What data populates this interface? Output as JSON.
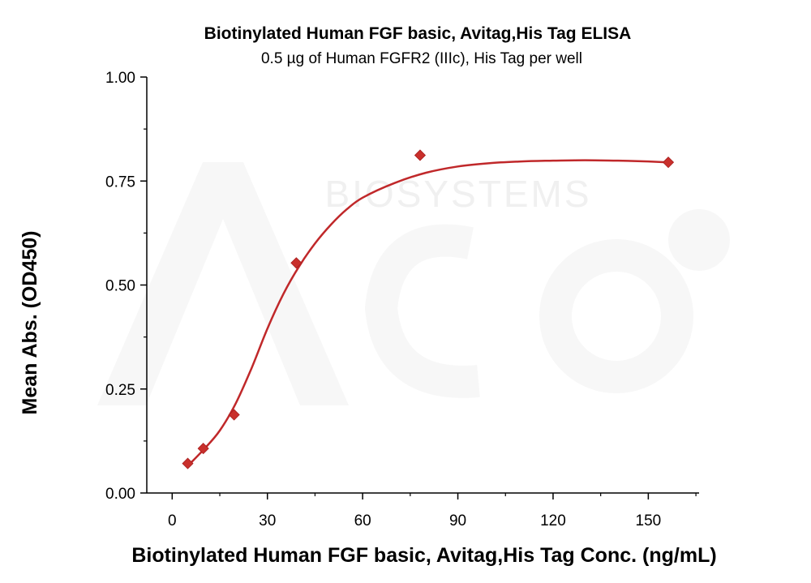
{
  "chart_data": {
    "type": "scatter",
    "title": "Biotinylated Human FGF basic, Avitag,His Tag ELISA",
    "subtitle": "0.5 µg of Human FGFR2 (IIIc), His Tag per well",
    "xlabel": "Biotinylated Human FGF basic, Avitag,His Tag Conc. (ng/mL)",
    "ylabel": "Mean Abs. (OD450)",
    "xlim": [
      -8,
      166
    ],
    "ylim": [
      0,
      1
    ],
    "xticks": [
      0,
      30,
      60,
      90,
      120,
      150
    ],
    "xtick_labels": [
      "0",
      "30",
      "60",
      "90",
      "120",
      "150"
    ],
    "yticks": [
      0,
      0.25,
      0.5,
      0.75,
      1.0
    ],
    "ytick_labels": [
      "0.00",
      "0.25",
      "0.50",
      "0.75",
      "1.00"
    ],
    "grid": false,
    "series": [
      {
        "x": [
          4.9,
          9.8,
          19.5,
          39.1,
          78.1,
          156.3
        ],
        "y": [
          0.071,
          0.107,
          0.188,
          0.553,
          0.812,
          0.795
        ],
        "marker": "diamond",
        "color": "#c9302c",
        "fit": "4PL"
      }
    ],
    "fit_curve": {
      "color": "#c0282a",
      "x": [
        4.9,
        10,
        15,
        20,
        25,
        30,
        35,
        40,
        45,
        50,
        55,
        60,
        70,
        80,
        90,
        100,
        110,
        120,
        130,
        140,
        150,
        156.3
      ],
      "y": [
        0.065,
        0.105,
        0.15,
        0.215,
        0.3,
        0.395,
        0.478,
        0.545,
        0.6,
        0.645,
        0.682,
        0.71,
        0.745,
        0.77,
        0.785,
        0.793,
        0.797,
        0.799,
        0.8,
        0.799,
        0.797,
        0.795
      ]
    }
  },
  "watermark": {
    "text": "BIOSYSTEMS",
    "color": "#f2f2f2"
  }
}
